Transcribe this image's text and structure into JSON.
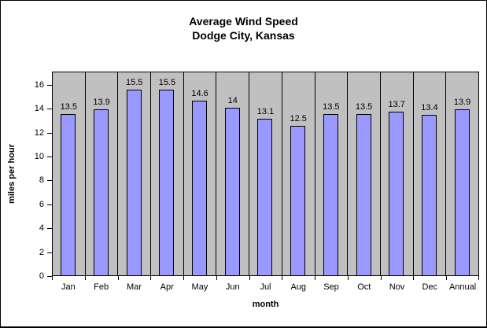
{
  "title": {
    "line1": "Average Wind Speed",
    "line2": "Dodge City, Kansas"
  },
  "chart_data": {
    "type": "bar",
    "title": "Average Wind Speed — Dodge City, Kansas",
    "categories": [
      "Jan",
      "Feb",
      "Mar",
      "Apr",
      "May",
      "Jun",
      "Jul",
      "Aug",
      "Sep",
      "Oct",
      "Nov",
      "Dec",
      "Annual"
    ],
    "values": [
      13.5,
      13.9,
      15.5,
      15.5,
      14.6,
      14,
      13.1,
      12.5,
      13.5,
      13.5,
      13.7,
      13.4,
      13.9
    ],
    "value_labels": [
      "13.5",
      "13.9",
      "15.5",
      "15.5",
      "14.6",
      "14",
      "13.1",
      "12.5",
      "13.5",
      "13.5",
      "13.7",
      "13.4",
      "13.9"
    ],
    "xlabel": "month",
    "ylabel": "miles per hour",
    "yticks": [
      0,
      2,
      4,
      6,
      8,
      10,
      12,
      14,
      16
    ],
    "ylim": [
      0,
      17.1
    ],
    "grid": "vertical category separators only, no horizontal gridlines",
    "legend": "none",
    "colors": {
      "bar_fill": "#9999FF",
      "bar_border": "#000000",
      "plot_bg": "#C0C0C0",
      "chart_bg": "#FFFFFF",
      "text": "#000000"
    }
  }
}
